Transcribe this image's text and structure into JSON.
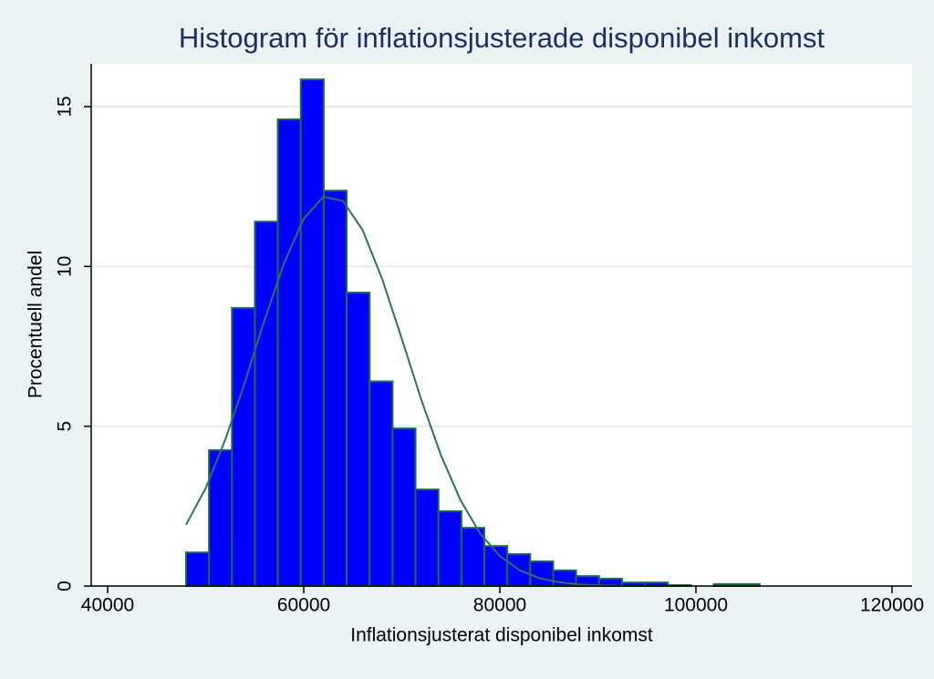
{
  "chart_data": {
    "type": "histogram",
    "title": "Histogram för inflationsjusterade disponibel inkomst",
    "x_label": "Inflationsjusterat disponibel inkomst",
    "y_label": "Procentuell andel",
    "bins": [
      48000,
      50340,
      52680,
      55020,
      57360,
      59700,
      62040,
      64380,
      66720,
      69060,
      71400,
      73740,
      76080,
      78420,
      80760,
      83100,
      85440,
      87780,
      90120,
      92460,
      94800,
      97140,
      99480,
      101820,
      104160,
      106500
    ],
    "values": [
      1.05,
      4.25,
      8.7,
      11.4,
      14.6,
      15.85,
      12.37,
      9.18,
      6.4,
      4.93,
      3.02,
      2.34,
      1.82,
      1.25,
      1.0,
      0.77,
      0.49,
      0.31,
      0.23,
      0.11,
      0.11,
      0.03,
      0,
      0.06,
      0.06
    ],
    "color": "#0000ff",
    "edge_color": "#1f6b3c",
    "curve": {
      "color": "#2f6f64",
      "x": [
        48000,
        50000,
        52000,
        54000,
        56000,
        58000,
        60000,
        62000,
        64000,
        66000,
        68000,
        70000,
        72000,
        74000,
        76000,
        78000,
        80000,
        82000,
        84000,
        86000,
        88000,
        90000,
        92000
      ],
      "values": [
        1.92,
        3.06,
        4.58,
        6.38,
        8.32,
        10.11,
        11.49,
        12.18,
        12.05,
        11.14,
        9.61,
        7.74,
        5.82,
        4.09,
        2.68,
        1.64,
        0.94,
        0.5,
        0.25,
        0.12,
        0.05,
        0.02,
        0.01
      ]
    },
    "xlim": [
      38326,
      122047
    ],
    "ylim": [
      0,
      16.34
    ],
    "xticks": [
      40000,
      60000,
      80000,
      100000,
      120000
    ],
    "yticks": [
      0,
      5,
      10,
      15
    ],
    "grid": true
  }
}
